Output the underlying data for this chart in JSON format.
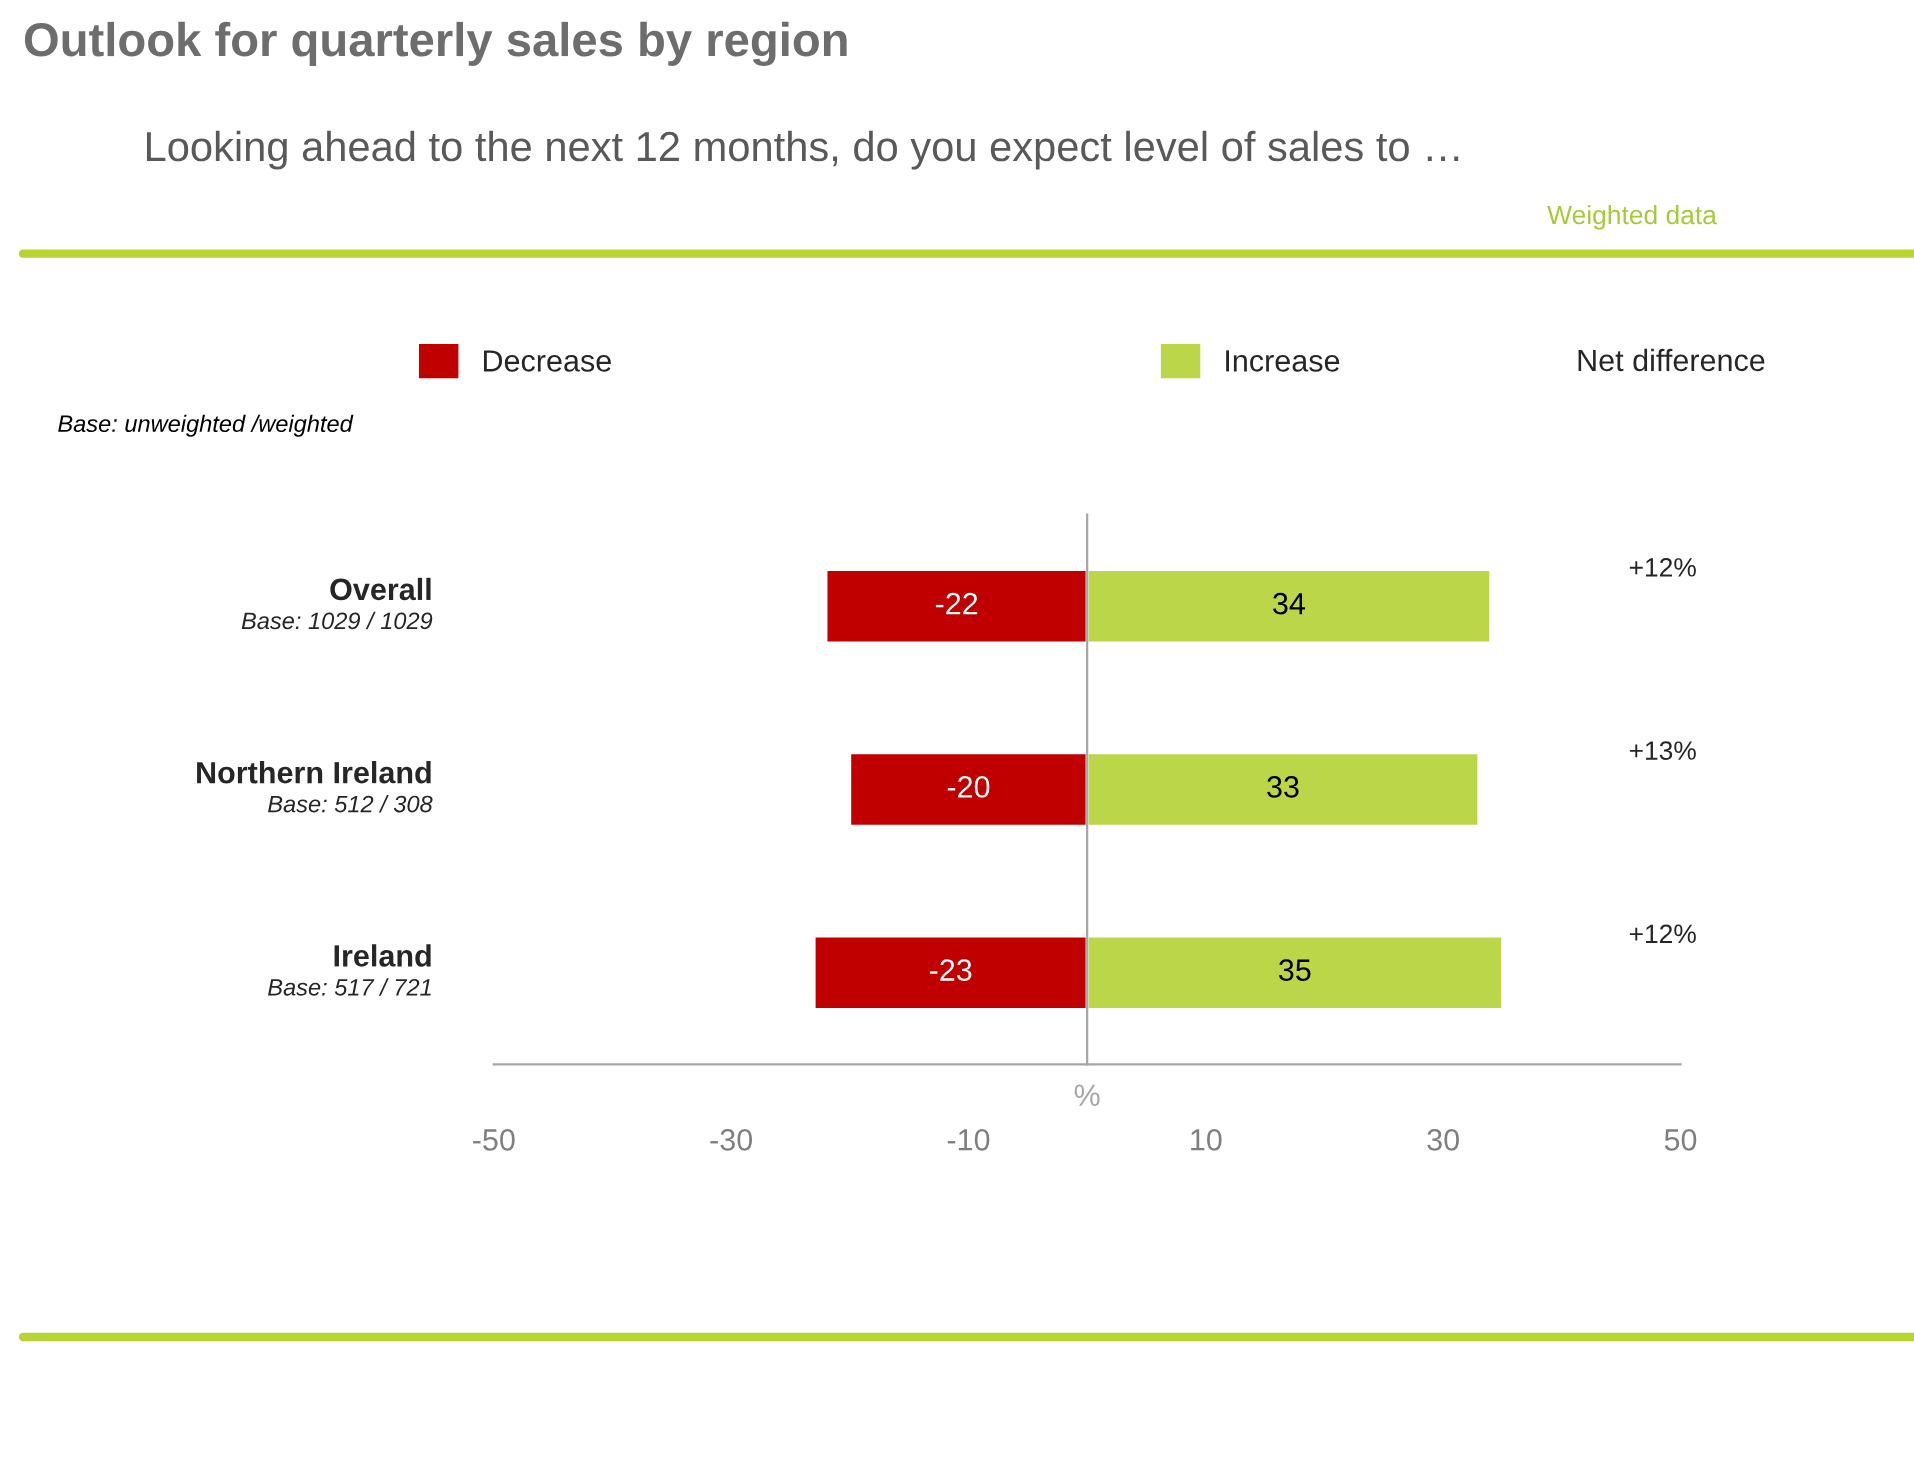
{
  "chart_data": {
    "type": "bar",
    "orientation": "horizontal",
    "stacked": true,
    "title": "Outlook for quarterly sales by region",
    "subtitle": "Looking ahead to the next 12 months, do you expect level of sales to …",
    "xlabel": "%",
    "categories": [
      "Overall",
      "Northern Ireland",
      "Ireland"
    ],
    "series": [
      {
        "name": "Decrease",
        "color": "#c00000",
        "values": [
          -22,
          -20,
          -23
        ]
      },
      {
        "name": "Increase",
        "color": "#bcd64a",
        "values": [
          34,
          33,
          35
        ]
      }
    ],
    "xlim": [
      -50,
      50
    ],
    "xticks": [
      -50,
      -30,
      -10,
      10,
      30,
      50
    ],
    "data_labels": true,
    "legend": "top",
    "grid": false,
    "annotations": [
      "Weighted data",
      "Base: unweighted /weighted",
      "Net difference",
      "Base: 1029 / 1029",
      "Base: 512 / 308",
      "Base: 517 / 721",
      "+12%",
      "+13%",
      "+12%"
    ]
  }
}
